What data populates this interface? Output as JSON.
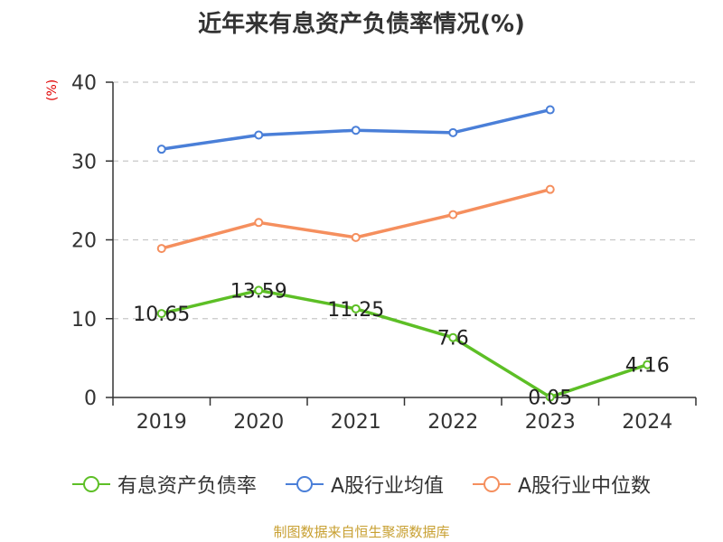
{
  "chart_data": {
    "type": "line",
    "title": "近年来有息资产负债率情况(%)",
    "unit_label": "(%)",
    "categories": [
      "2019",
      "2020",
      "2021",
      "2022",
      "2023",
      "2024"
    ],
    "ylim": [
      0,
      40
    ],
    "yticks": [
      0,
      10,
      20,
      30,
      40
    ],
    "grid": true,
    "legend_position": "bottom",
    "series": [
      {
        "name": "有息资产负债率",
        "color": "#5dbf26",
        "values": [
          10.65,
          13.59,
          11.25,
          7.6,
          0.05,
          4.16
        ],
        "labels": [
          "10.65",
          "13.59",
          "11.25",
          "7.6",
          "0.05",
          "4.16"
        ]
      },
      {
        "name": "A股行业均值",
        "color": "#4a7fd8",
        "values": [
          31.5,
          33.3,
          33.9,
          33.6,
          36.5,
          null
        ]
      },
      {
        "name": "A股行业中位数",
        "color": "#f58f5e",
        "values": [
          18.9,
          22.2,
          20.3,
          23.2,
          26.4,
          null
        ]
      }
    ]
  },
  "source": "制图数据来自恒生聚源数据库"
}
